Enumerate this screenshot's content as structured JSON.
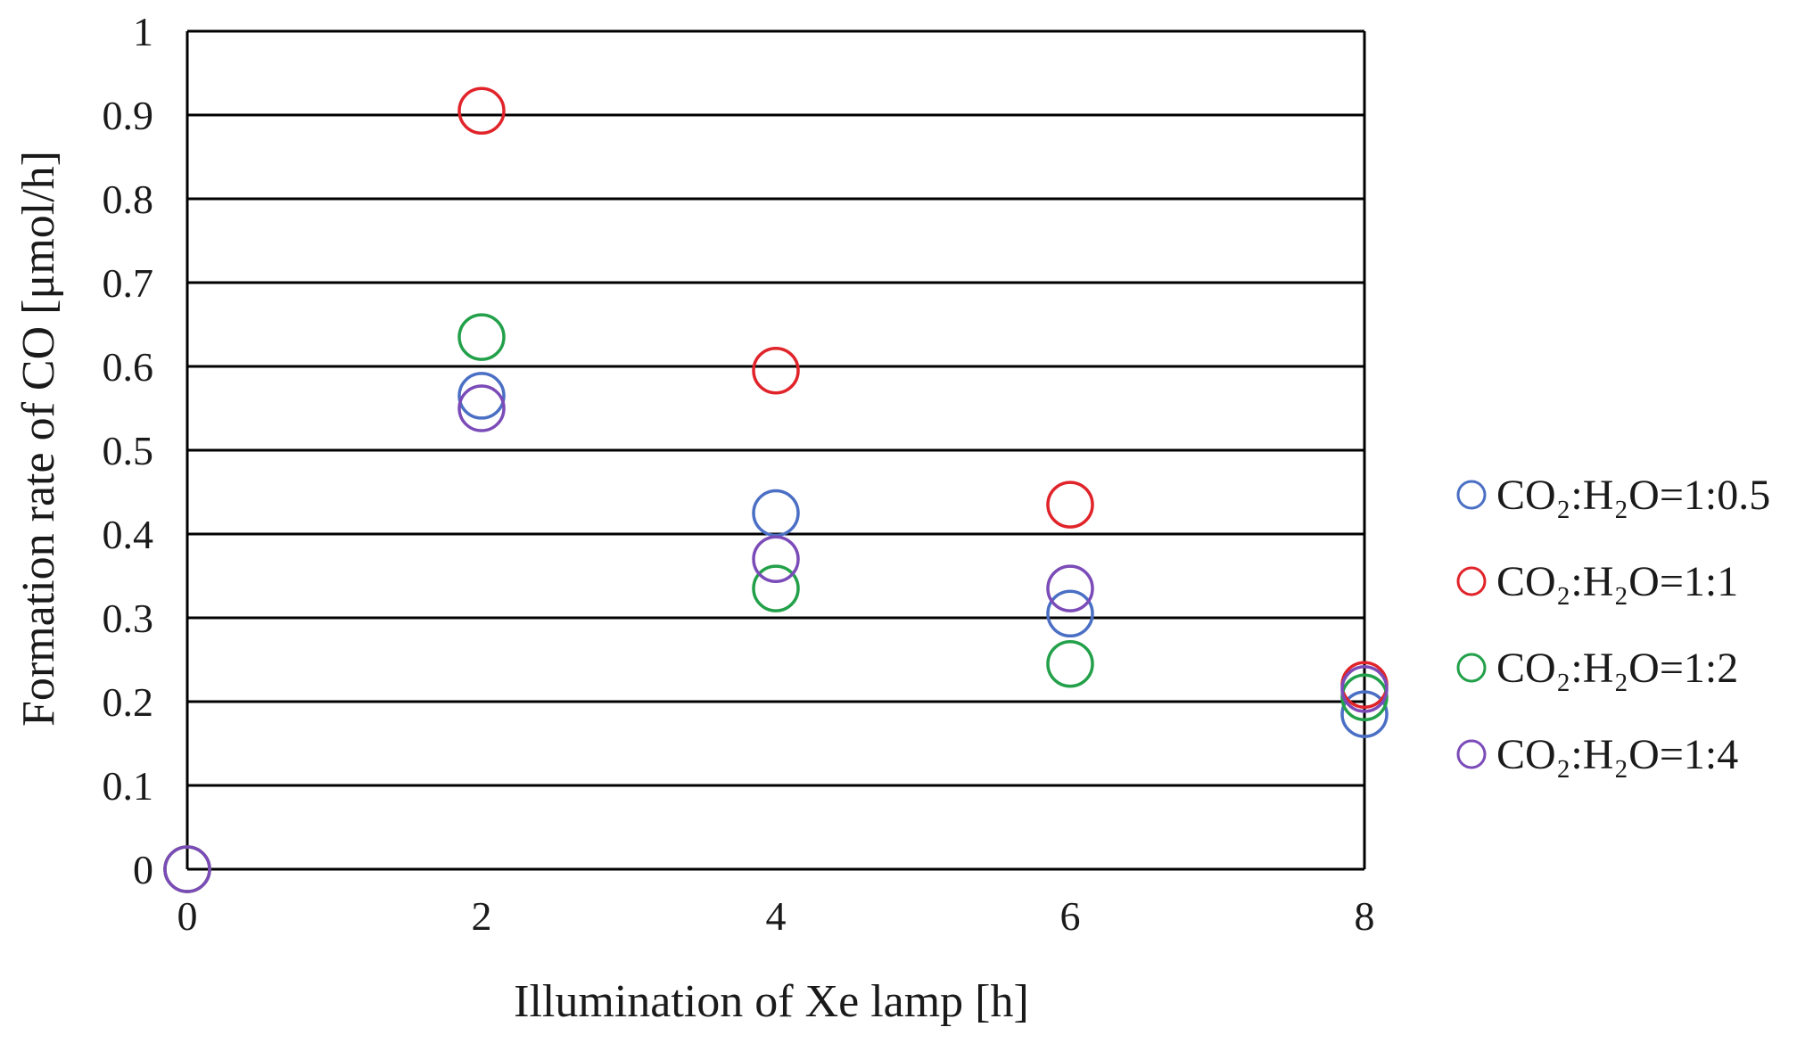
{
  "chart_data": {
    "type": "scatter",
    "title": "",
    "xlabel": "Illumination of Xe lamp [h]",
    "ylabel": "Formation rate of CO [μmol/h]",
    "xlim": [
      0,
      8
    ],
    "ylim": [
      0,
      1
    ],
    "xticks": [
      0,
      2,
      4,
      6,
      8
    ],
    "xtick_labels": [
      "0",
      "2",
      "4",
      "6",
      "8"
    ],
    "yticks": [
      0,
      0.1,
      0.2,
      0.3,
      0.4,
      0.5,
      0.6,
      0.7,
      0.8,
      0.9,
      1
    ],
    "ytick_labels": [
      "0",
      "0.1",
      "0.2",
      "0.3",
      "0.4",
      "0.5",
      "0.6",
      "0.7",
      "0.8",
      "0.9",
      "1"
    ],
    "grid": "horizontal",
    "legend_position": "right",
    "marker": "open-circle",
    "series": [
      {
        "name": "CO₂:H₂O=1:0.5",
        "color": "#4a6fc4",
        "x": [
          0,
          2,
          4,
          6,
          8
        ],
        "y": [
          0,
          0.565,
          0.425,
          0.305,
          0.185
        ]
      },
      {
        "name": "CO₂:H₂O=1:1",
        "color": "#e0242a",
        "x": [
          0,
          2,
          4,
          6,
          8
        ],
        "y": [
          0,
          0.905,
          0.595,
          0.435,
          0.22
        ]
      },
      {
        "name": "CO₂:H₂O=1:2",
        "color": "#23a04a",
        "x": [
          0,
          2,
          4,
          6,
          8
        ],
        "y": [
          0,
          0.635,
          0.335,
          0.245,
          0.205
        ]
      },
      {
        "name": "CO₂:H₂O=1:4",
        "color": "#7b4bb8",
        "x": [
          0,
          2,
          4,
          6,
          8
        ],
        "y": [
          0,
          0.55,
          0.37,
          0.335,
          0.215
        ]
      }
    ]
  }
}
